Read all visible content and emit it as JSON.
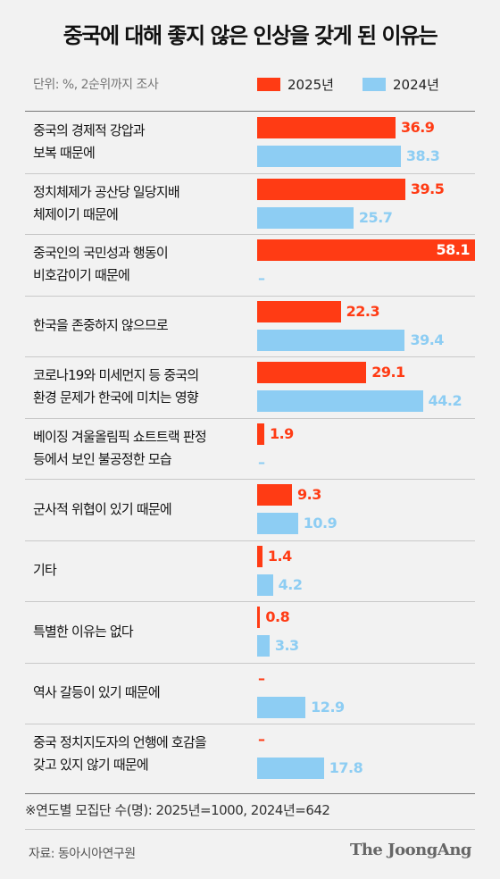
{
  "chart_data": {
    "type": "bar",
    "orientation": "horizontal",
    "title": "중국에 대해 좋지 않은 인상을 갖게 된 이유는",
    "unit_note": "단위: %, 2순위까지 조사",
    "categories": [
      [
        "중국의 경제적 강압과",
        "보복 때문에"
      ],
      [
        "정치체제가 공산당 일당지배",
        "체제이기 때문에"
      ],
      [
        "중국인의 국민성과 행동이",
        "비호감이기 때문에"
      ],
      [
        "한국을 존중하지 않으므로"
      ],
      [
        "코로나19와 미세먼지 등 중국의",
        "환경 문제가 한국에 미치는 영향"
      ],
      [
        "베이징 겨울올림픽 쇼트트랙 판정",
        "등에서 보인 불공정한 모습"
      ],
      [
        "군사적 위협이 있기 때문에"
      ],
      [
        "기타"
      ],
      [
        "특별한 이유는 없다"
      ],
      [
        "역사 갈등이 있기 때문에"
      ],
      [
        "중국 정치지도자의 언행에 호감을",
        "갖고 있지 않기 때문에"
      ]
    ],
    "series": [
      {
        "name": "2025년",
        "color": "#ff3b14",
        "values": [
          36.9,
          39.5,
          58.1,
          22.3,
          29.1,
          1.9,
          9.3,
          1.4,
          0.8,
          null,
          null
        ]
      },
      {
        "name": "2024년",
        "color": "#8dcdf3",
        "values": [
          38.3,
          25.7,
          null,
          39.4,
          44.2,
          null,
          10.9,
          4.2,
          3.3,
          12.9,
          17.8
        ]
      }
    ],
    "missing_label": "–",
    "xlim": [
      0,
      58.1
    ],
    "legend_position": "top-right",
    "grid": false
  },
  "footnote": "※연도별 모집단 수(명): 2025년=1000, 2024년=642",
  "source": "자료: 동아시아연구원",
  "brand": "The JoongAng"
}
